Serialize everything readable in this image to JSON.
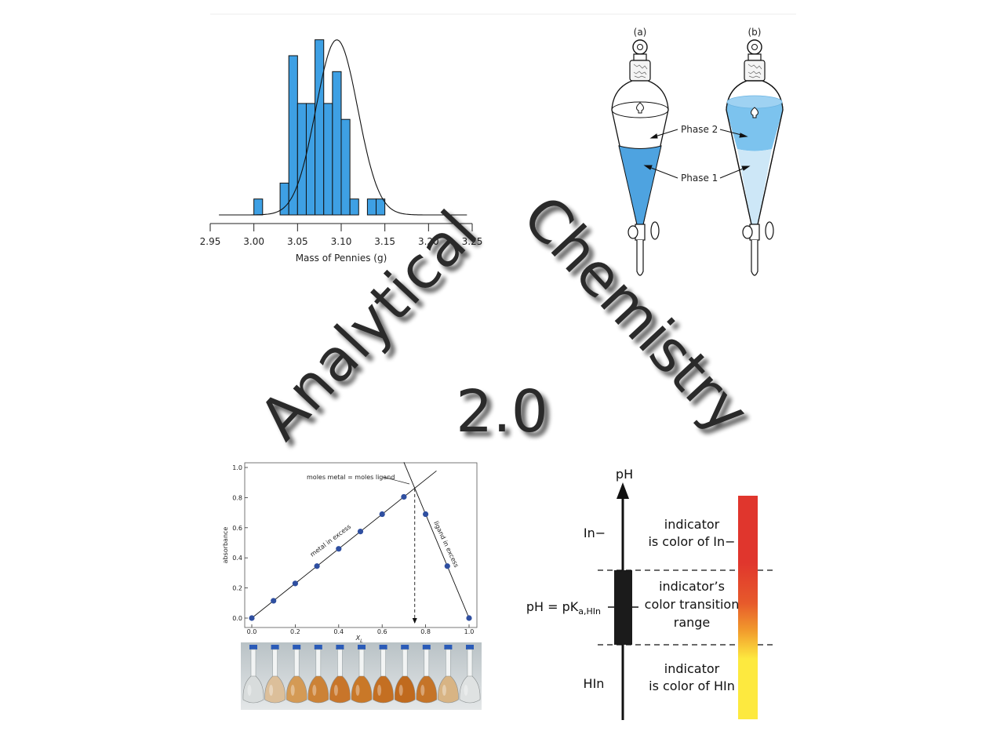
{
  "title": {
    "word1": "Analytical",
    "word2": "Chemistry",
    "version": "2.0"
  },
  "histogram": {
    "chart_data": {
      "type": "bar",
      "xlabel": "Mass of Pennies (g)",
      "ylabel": "",
      "xlim": [
        2.95,
        3.25
      ],
      "xticks": [
        "2.95",
        "3.00",
        "3.05",
        "3.10",
        "3.15",
        "3.20",
        "3.25"
      ],
      "bin_width": 0.01,
      "bins": [
        {
          "x": 3.0,
          "count": 1
        },
        {
          "x": 3.01,
          "count": 0
        },
        {
          "x": 3.02,
          "count": 0
        },
        {
          "x": 3.03,
          "count": 2
        },
        {
          "x": 3.04,
          "count": 10
        },
        {
          "x": 3.05,
          "count": 7
        },
        {
          "x": 3.06,
          "count": 7
        },
        {
          "x": 3.07,
          "count": 11
        },
        {
          "x": 3.08,
          "count": 7
        },
        {
          "x": 3.09,
          "count": 9
        },
        {
          "x": 3.1,
          "count": 6
        },
        {
          "x": 3.11,
          "count": 1
        },
        {
          "x": 3.12,
          "count": 0
        },
        {
          "x": 3.13,
          "count": 1
        },
        {
          "x": 3.14,
          "count": 1
        }
      ],
      "normal_curve": {
        "mean": 3.095,
        "sd": 0.024,
        "peak_count": 11
      },
      "bar_color": "#3ea0e4"
    }
  },
  "funnels": {
    "labels": [
      "(a)",
      "(b)"
    ],
    "phase2_label": "Phase 2",
    "phase1_label": "Phase 1",
    "colors": {
      "a_phase1": "#4ea3e0",
      "b_phase2": "#7cc3ee",
      "b_phase1": "#cde7f7"
    }
  },
  "job_plot": {
    "chart_data": {
      "type": "scatter",
      "xlabel": "X",
      "xlabel_sub": "L",
      "ylabel": "absorbance",
      "xlim": [
        0.0,
        1.0
      ],
      "ylim": [
        0.0,
        1.0
      ],
      "xticks": [
        "0.0",
        "0.2",
        "0.4",
        "0.6",
        "0.8",
        "1.0"
      ],
      "yticks": [
        "0.0",
        "0.2",
        "0.4",
        "0.6",
        "0.8",
        "1.0"
      ],
      "x": [
        0.0,
        0.1,
        0.2,
        0.3,
        0.4,
        0.5,
        0.6,
        0.7,
        0.8,
        0.9,
        1.0
      ],
      "y": [
        0.0,
        0.115,
        0.23,
        0.345,
        0.46,
        0.575,
        0.69,
        0.805,
        0.69,
        0.345,
        0.0
      ],
      "equivalence_x": 0.75,
      "annotations": {
        "equivalence": "moles metal = moles ligand",
        "left_line": "metal in excess",
        "right_line": "ligand in excess"
      },
      "point_color": "#2f4fa0"
    },
    "flask_colors": [
      "#d8dcdc",
      "#dcbf9a",
      "#d49a55",
      "#cc8236",
      "#c8752a",
      "#c97828",
      "#c46f22",
      "#c06a1e",
      "#c57428",
      "#d8b484",
      "#dfe2e2"
    ]
  },
  "indicator": {
    "axis_label": "pH",
    "in_minus_label": "In−",
    "hin_label": "HIn",
    "pka_prefix": "pH = pK",
    "pka_sub": "a,HIn",
    "upper_text": [
      "indicator",
      "is color of In−"
    ],
    "middle_text": [
      "indicator’s",
      "color transition",
      "range"
    ],
    "lower_text": [
      "indicator",
      "is color of HIn"
    ],
    "colors": {
      "top": "#e0362d",
      "bottom": "#fde93f"
    }
  }
}
